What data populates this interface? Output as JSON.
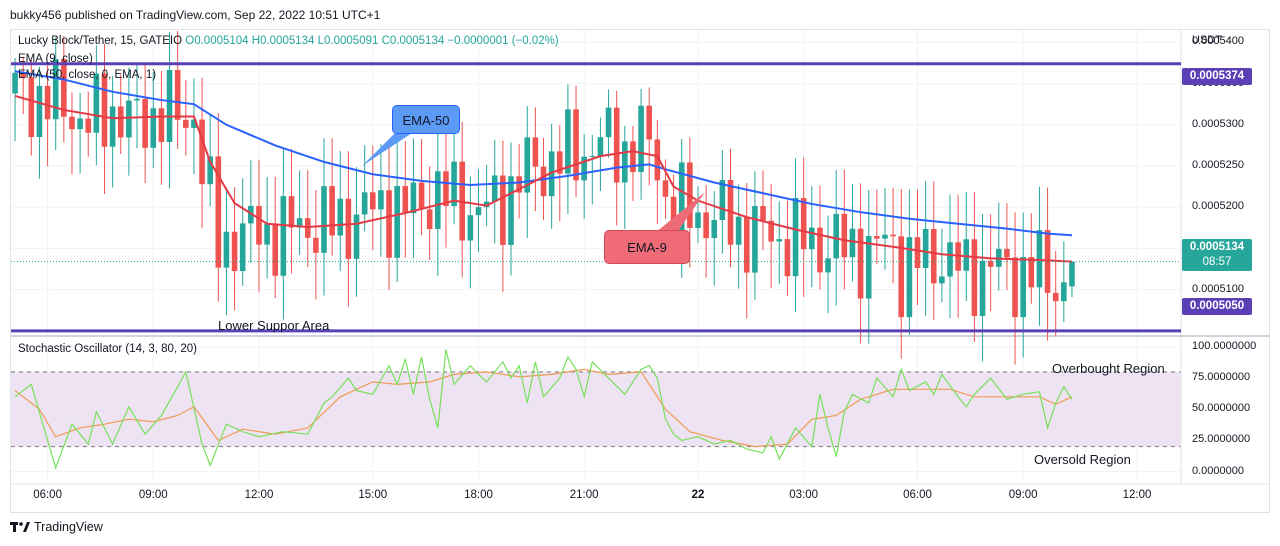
{
  "header": {
    "published": "bukky456 published on TradingView.com, Sep 22, 2022 10:51 UTC+1"
  },
  "legend": {
    "symbol": "Lucky Block/Tether, 15, GATEIO",
    "ohlc": "O0.0005104 H0.0005134 L0.0005091 C0.0005134 −0.0000001 (−0.02%)",
    "ema9": "EMA (9, close)",
    "ema50": "EMA (50, close, 0, EMA, 1)",
    "stoch": "Stochastic Oscillator (14, 3, 80, 20)"
  },
  "price_axis": {
    "currency": "USDT",
    "ticks": [
      "0.0005400",
      "0.0005350",
      "0.0005300",
      "0.0005250",
      "0.0005200",
      "0.0005150",
      "0.0005100"
    ],
    "upper_level_label": "0.0005374",
    "lower_level_label": "0.0005050",
    "last_price_label": "0.0005134",
    "countdown": "08:57"
  },
  "osc_axis": {
    "ticks": [
      "100.0000000",
      "75.0000000",
      "50.0000000",
      "25.0000000",
      "0.0000000"
    ]
  },
  "time_axis": {
    "ticks": [
      "06:00",
      "09:00",
      "12:00",
      "15:00",
      "18:00",
      "21:00",
      "22",
      "03:00",
      "06:00",
      "09:00",
      "12:00"
    ]
  },
  "annotations": {
    "ema50_callout": "EMA-50",
    "ema9_callout": "EMA-9",
    "lower_area": "Lower Suppor Area",
    "overbought": "Overbought Region",
    "oversold": "Oversold Region"
  },
  "brand": "TradingView",
  "colors": {
    "bull": "#26a69a",
    "bear": "#ef5350",
    "ema9": "#e53945",
    "ema50": "#2962ff",
    "level": "#5b3fb5",
    "stoch_k": "#77e05a",
    "stoch_d": "#f29a55",
    "stoch_band": "#ede3f2",
    "callout_blue": "#5b9bf5",
    "callout_red": "#f06b78"
  },
  "chart_data": {
    "type": "candlestick",
    "symbol": "Lucky Block/Tether",
    "timeframe": "15",
    "y_range": [
      0.0005045,
      0.0005415
    ],
    "horizontal_levels": [
      0.0005374,
      0.000505
    ],
    "last_price": 0.0005134,
    "ohlc_last": {
      "open": 0.0005104,
      "high": 0.0005134,
      "low": 0.0005091,
      "close": 0.0005134
    },
    "close_path": [
      [
        0,
        0.0005338
      ],
      [
        6,
        0.0005325
      ],
      [
        9,
        0.00053
      ],
      [
        12,
        0.0005318
      ],
      [
        15,
        0.00053
      ],
      [
        18,
        0.0005318
      ],
      [
        21,
        0.0005305
      ],
      [
        22,
        0.000532
      ],
      [
        23,
        0.000525
      ],
      [
        24,
        0.0005205
      ],
      [
        25,
        0.000515
      ],
      [
        27,
        0.0005165
      ],
      [
        30,
        0.000517
      ],
      [
        33,
        0.000517
      ],
      [
        36,
        0.000518
      ],
      [
        39,
        0.0005178
      ],
      [
        42,
        0.000519
      ],
      [
        45,
        0.00052
      ],
      [
        48,
        0.0005195
      ],
      [
        51,
        0.0005215
      ],
      [
        54,
        0.000521
      ],
      [
        57,
        0.0005192
      ],
      [
        60,
        0.000521
      ],
      [
        63,
        0.0005245
      ],
      [
        66,
        0.0005255
      ],
      [
        69,
        0.0005265
      ],
      [
        72,
        0.0005278
      ],
      [
        75,
        0.000527
      ],
      [
        77,
        0.0005282
      ],
      [
        79,
        0.0005258
      ],
      [
        80,
        0.0005212
      ],
      [
        82,
        0.0005195
      ],
      [
        84,
        0.0005192
      ],
      [
        87,
        0.0005185
      ],
      [
        90,
        0.000517
      ],
      [
        93,
        0.0005165
      ],
      [
        96,
        0.000516
      ],
      [
        99,
        0.0005155
      ],
      [
        102,
        0.000515
      ],
      [
        105,
        0.0005145
      ],
      [
        108,
        0.000516
      ],
      [
        109,
        0.000512
      ],
      [
        111,
        0.0005135
      ],
      [
        114,
        0.000514
      ],
      [
        117,
        0.000512
      ],
      [
        120,
        0.000513
      ],
      [
        123,
        0.0005118
      ],
      [
        126,
        0.0005122
      ],
      [
        129,
        0.0005104
      ],
      [
        130,
        0.0005134
      ]
    ],
    "ema9_path": [
      [
        0,
        0.0005335
      ],
      [
        6,
        0.0005318
      ],
      [
        12,
        0.0005308
      ],
      [
        18,
        0.000531
      ],
      [
        22,
        0.000531
      ],
      [
        24,
        0.0005255
      ],
      [
        27,
        0.0005205
      ],
      [
        31,
        0.000518
      ],
      [
        36,
        0.0005176
      ],
      [
        42,
        0.000518
      ],
      [
        48,
        0.0005193
      ],
      [
        54,
        0.0005208
      ],
      [
        58,
        0.0005202
      ],
      [
        62,
        0.0005222
      ],
      [
        66,
        0.0005242
      ],
      [
        72,
        0.0005262
      ],
      [
        76,
        0.0005268
      ],
      [
        79,
        0.0005262
      ],
      [
        81,
        0.0005225
      ],
      [
        84,
        0.0005208
      ],
      [
        90,
        0.0005188
      ],
      [
        96,
        0.0005173
      ],
      [
        102,
        0.000516
      ],
      [
        108,
        0.0005152
      ],
      [
        114,
        0.0005143
      ],
      [
        120,
        0.0005138
      ],
      [
        126,
        0.0005136
      ],
      [
        130,
        0.0005134
      ]
    ],
    "ema50_path": [
      [
        0,
        0.0005365
      ],
      [
        6,
        0.0005355
      ],
      [
        12,
        0.000534
      ],
      [
        18,
        0.000533
      ],
      [
        22,
        0.0005325
      ],
      [
        26,
        0.00053
      ],
      [
        32,
        0.0005275
      ],
      [
        38,
        0.0005255
      ],
      [
        44,
        0.000524
      ],
      [
        50,
        0.0005232
      ],
      [
        56,
        0.0005227
      ],
      [
        62,
        0.000523
      ],
      [
        68,
        0.0005238
      ],
      [
        74,
        0.0005248
      ],
      [
        78,
        0.0005252
      ],
      [
        80,
        0.0005246
      ],
      [
        86,
        0.000523
      ],
      [
        92,
        0.0005217
      ],
      [
        98,
        0.0005204
      ],
      [
        104,
        0.0005194
      ],
      [
        110,
        0.0005186
      ],
      [
        116,
        0.000518
      ],
      [
        122,
        0.0005174
      ],
      [
        127,
        0.0005168
      ],
      [
        130,
        0.0005166
      ]
    ],
    "oscillator": {
      "name": "Stochastic Oscillator (14, 3, 80, 20)",
      "y_range": [
        -10,
        108
      ],
      "bands": [
        80,
        20
      ],
      "k": [
        [
          0,
          60
        ],
        [
          2,
          70
        ],
        [
          4,
          25
        ],
        [
          5,
          3
        ],
        [
          7,
          38
        ],
        [
          9,
          22
        ],
        [
          10,
          48
        ],
        [
          12,
          22
        ],
        [
          14,
          52
        ],
        [
          16,
          30
        ],
        [
          18,
          45
        ],
        [
          20,
          68
        ],
        [
          21,
          80
        ],
        [
          23,
          22
        ],
        [
          24,
          5
        ],
        [
          26,
          38
        ],
        [
          28,
          32
        ],
        [
          30,
          28
        ],
        [
          33,
          32
        ],
        [
          36,
          30
        ],
        [
          38,
          55
        ],
        [
          39,
          60
        ],
        [
          41,
          75
        ],
        [
          42,
          65
        ],
        [
          44,
          62
        ],
        [
          46,
          85
        ],
        [
          47,
          70
        ],
        [
          48,
          90
        ],
        [
          49,
          62
        ],
        [
          50,
          92
        ],
        [
          51,
          58
        ],
        [
          52,
          35
        ],
        [
          53,
          98
        ],
        [
          54,
          70
        ],
        [
          56,
          85
        ],
        [
          57,
          78
        ],
        [
          58,
          72
        ],
        [
          60,
          88
        ],
        [
          61,
          75
        ],
        [
          62,
          85
        ],
        [
          63,
          55
        ],
        [
          64,
          88
        ],
        [
          65,
          60
        ],
        [
          67,
          75
        ],
        [
          68,
          92
        ],
        [
          69,
          82
        ],
        [
          70,
          60
        ],
        [
          71,
          88
        ],
        [
          73,
          75
        ],
        [
          75,
          62
        ],
        [
          77,
          82
        ],
        [
          78,
          85
        ],
        [
          79,
          75
        ],
        [
          80,
          42
        ],
        [
          81,
          30
        ],
        [
          82,
          25
        ],
        [
          84,
          28
        ],
        [
          86,
          22
        ],
        [
          88,
          25
        ],
        [
          90,
          18
        ],
        [
          92,
          15
        ],
        [
          93,
          28
        ],
        [
          94,
          10
        ],
        [
          96,
          35
        ],
        [
          98,
          20
        ],
        [
          99,
          62
        ],
        [
          100,
          35
        ],
        [
          101,
          12
        ],
        [
          102,
          48
        ],
        [
          103,
          62
        ],
        [
          105,
          55
        ],
        [
          106,
          75
        ],
        [
          108,
          60
        ],
        [
          109,
          82
        ],
        [
          110,
          65
        ],
        [
          112,
          72
        ],
        [
          113,
          62
        ],
        [
          114,
          78
        ],
        [
          116,
          60
        ],
        [
          117,
          52
        ],
        [
          118,
          62
        ],
        [
          120,
          75
        ],
        [
          122,
          58
        ],
        [
          124,
          62
        ],
        [
          126,
          64
        ],
        [
          127,
          35
        ],
        [
          128,
          55
        ],
        [
          129,
          68
        ],
        [
          130,
          58
        ]
      ],
      "d": [
        [
          0,
          65
        ],
        [
          3,
          50
        ],
        [
          5,
          28
        ],
        [
          8,
          35
        ],
        [
          11,
          38
        ],
        [
          14,
          42
        ],
        [
          17,
          40
        ],
        [
          20,
          45
        ],
        [
          22,
          52
        ],
        [
          25,
          25
        ],
        [
          28,
          34
        ],
        [
          32,
          30
        ],
        [
          36,
          35
        ],
        [
          40,
          60
        ],
        [
          44,
          72
        ],
        [
          47,
          70
        ],
        [
          51,
          72
        ],
        [
          54,
          78
        ],
        [
          58,
          80
        ],
        [
          62,
          76
        ],
        [
          66,
          78
        ],
        [
          70,
          82
        ],
        [
          73,
          78
        ],
        [
          77,
          80
        ],
        [
          80,
          50
        ],
        [
          83,
          32
        ],
        [
          87,
          25
        ],
        [
          91,
          20
        ],
        [
          95,
          22
        ],
        [
          98,
          42
        ],
        [
          101,
          45
        ],
        [
          104,
          58
        ],
        [
          108,
          66
        ],
        [
          111,
          66
        ],
        [
          115,
          66
        ],
        [
          118,
          60
        ],
        [
          122,
          60
        ],
        [
          126,
          60
        ],
        [
          128,
          54
        ],
        [
          130,
          60
        ]
      ]
    }
  }
}
